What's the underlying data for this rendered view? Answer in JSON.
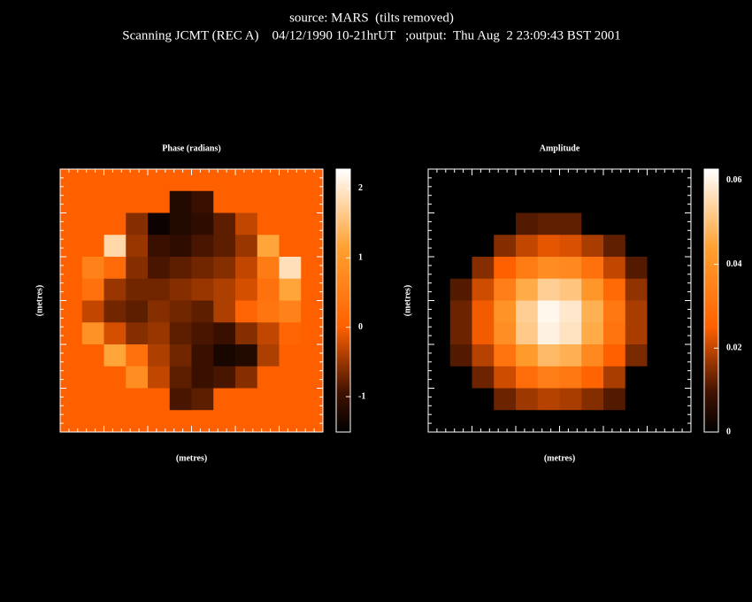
{
  "header": {
    "line1": "source: MARS  (tilts removed)",
    "line2": "Scanning JCMT (REC A)    04/12/1990 10-21hrUT   ;output:  Thu Aug  2 23:09:43 BST 2001"
  },
  "chart_data": [
    {
      "type": "heatmap",
      "title": "Phase (radians)",
      "xlabel": "(metres)",
      "ylabel": "(metres)",
      "zlim": [
        -1.51,
        2.28
      ],
      "zticks": [
        -1,
        0,
        1,
        2
      ],
      "colormap": [
        [
          0,
          "#000000"
        ],
        [
          0.15,
          "#401200"
        ],
        [
          0.4,
          "#ff6000"
        ],
        [
          0.7,
          "#ffa030"
        ],
        [
          1,
          "#ffffff"
        ]
      ],
      "values": [
        [
          0,
          0,
          0,
          0,
          0,
          0,
          0,
          0,
          0,
          0,
          0,
          0
        ],
        [
          0,
          0,
          0,
          0,
          0,
          -1.2,
          -1.0,
          0,
          0,
          0,
          0,
          0
        ],
        [
          0,
          0,
          0,
          -0.6,
          -1.4,
          -1.2,
          -1.1,
          -0.8,
          -0.3,
          0,
          0,
          0
        ],
        [
          0,
          0,
          1.8,
          -0.5,
          -1.0,
          -1.1,
          -0.9,
          -0.8,
          -0.5,
          1.2,
          0,
          0
        ],
        [
          0,
          0.6,
          0.2,
          -0.6,
          -0.9,
          -0.8,
          -0.7,
          -0.6,
          -0.3,
          0.5,
          1.9,
          0
        ],
        [
          0,
          0.3,
          -0.5,
          -0.7,
          -0.7,
          -0.6,
          -0.5,
          -0.4,
          -0.2,
          0.3,
          1.2,
          0
        ],
        [
          0,
          -0.3,
          -0.7,
          -0.8,
          -0.6,
          -0.7,
          -0.8,
          -0.4,
          0.1,
          0.4,
          0.6,
          0
        ],
        [
          0,
          0.9,
          -0.2,
          -0.6,
          -0.5,
          -0.8,
          -0.9,
          -1.0,
          -0.6,
          -0.3,
          0.1,
          0
        ],
        [
          0,
          0,
          1.2,
          0.3,
          -0.4,
          -0.7,
          -1.0,
          -1.3,
          -1.2,
          -0.4,
          0,
          0
        ],
        [
          0,
          0,
          0,
          0.8,
          -0.3,
          -0.8,
          -1.0,
          -0.9,
          -0.6,
          0,
          0,
          0
        ],
        [
          0,
          0,
          0,
          0,
          0,
          -0.9,
          -0.8,
          0,
          0,
          0,
          0,
          0
        ],
        [
          0,
          0,
          0,
          0,
          0,
          0,
          0,
          0,
          0,
          0,
          0,
          0
        ]
      ]
    },
    {
      "type": "heatmap",
      "title": "Amplitude",
      "xlabel": "(metres)",
      "ylabel": "(metres)",
      "zlim": [
        0,
        0.0627
      ],
      "zticks": [
        0,
        0.02,
        0.04,
        0.06
      ],
      "colormap": [
        [
          0,
          "#000000"
        ],
        [
          0.15,
          "#401200"
        ],
        [
          0.4,
          "#ff6000"
        ],
        [
          0.7,
          "#ffa030"
        ],
        [
          1,
          "#ffffff"
        ]
      ],
      "values": [
        [
          0,
          0,
          0,
          0,
          0,
          0,
          0,
          0,
          0,
          0,
          0,
          0
        ],
        [
          0,
          0,
          0,
          0,
          0,
          0,
          0,
          0,
          0,
          0,
          0,
          0
        ],
        [
          0,
          0,
          0,
          0,
          0.011,
          0.012,
          0.012,
          0,
          0,
          0,
          0,
          0
        ],
        [
          0,
          0,
          0,
          0.015,
          0.02,
          0.023,
          0.022,
          0.018,
          0.012,
          0,
          0,
          0
        ],
        [
          0,
          0,
          0.015,
          0.025,
          0.033,
          0.038,
          0.037,
          0.03,
          0.02,
          0.011,
          0,
          0
        ],
        [
          0,
          0.011,
          0.021,
          0.034,
          0.046,
          0.053,
          0.051,
          0.041,
          0.028,
          0.016,
          0,
          0
        ],
        [
          0,
          0.013,
          0.024,
          0.04,
          0.053,
          0.061,
          0.058,
          0.047,
          0.032,
          0.018,
          0,
          0
        ],
        [
          0,
          0.013,
          0.024,
          0.039,
          0.052,
          0.06,
          0.057,
          0.046,
          0.031,
          0.018,
          0,
          0
        ],
        [
          0,
          0.011,
          0.019,
          0.031,
          0.042,
          0.049,
          0.047,
          0.037,
          0.025,
          0.014,
          0,
          0
        ],
        [
          0,
          0,
          0.013,
          0.021,
          0.029,
          0.034,
          0.032,
          0.026,
          0.018,
          0,
          0,
          0
        ],
        [
          0,
          0,
          0,
          0.013,
          0.017,
          0.019,
          0.018,
          0.015,
          0.011,
          0,
          0,
          0
        ],
        [
          0,
          0,
          0,
          0,
          0,
          0,
          0,
          0,
          0,
          0,
          0,
          0
        ]
      ]
    }
  ]
}
